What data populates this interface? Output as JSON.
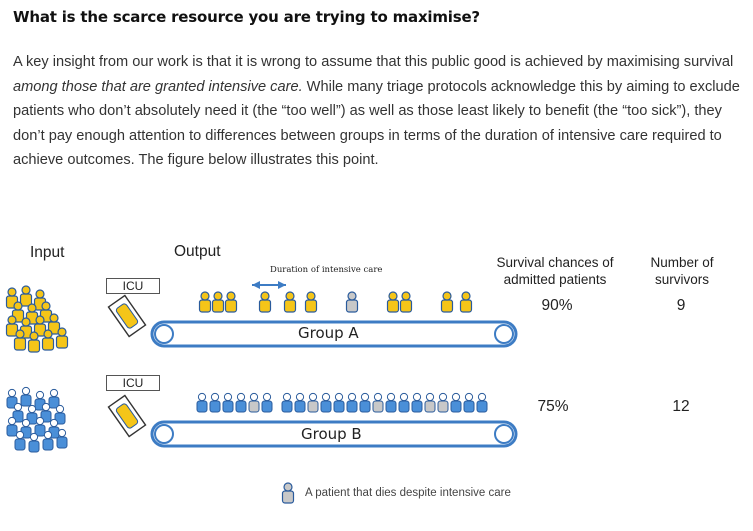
{
  "heading": "What is the scarce resource you are trying to maximise?",
  "paragraph": {
    "part1": "A key insight from our work is that it is wrong to assume that this public good is achieved by maximising survival ",
    "italic": "among those that are granted intensive care.",
    "part2": " While many triage protocols acknowledge this by aiming to exclude patients who don’t absolutely need it (the “too well”) as well as those least likely to benefit (the “too sick”), they don’t pay enough attention to differences between groups in terms of the duration of intensive care required to achieve outcomes. The figure below illustrates this point."
  },
  "figure": {
    "input_label": "Input",
    "output_label": "Output",
    "duration_label": "Duration of intensive care",
    "survival_header": "Survival chances of admitted patients",
    "survivors_header": "Number of survivors",
    "icu_label": "ICU",
    "legend": "A patient that dies despite intensive care",
    "colors": {
      "alive": "#f5c518",
      "dead": "#c8c8c8",
      "belt": "#3d7cc4",
      "groupB": "#4a8fd8"
    },
    "groups": [
      {
        "name": "Group A",
        "survival": "90%",
        "survivors": "9",
        "patients": 10,
        "deaths": 1
      },
      {
        "name": "Group B",
        "survival": "75%",
        "survivors": "12",
        "patients": 16,
        "deaths": 4
      }
    ]
  }
}
